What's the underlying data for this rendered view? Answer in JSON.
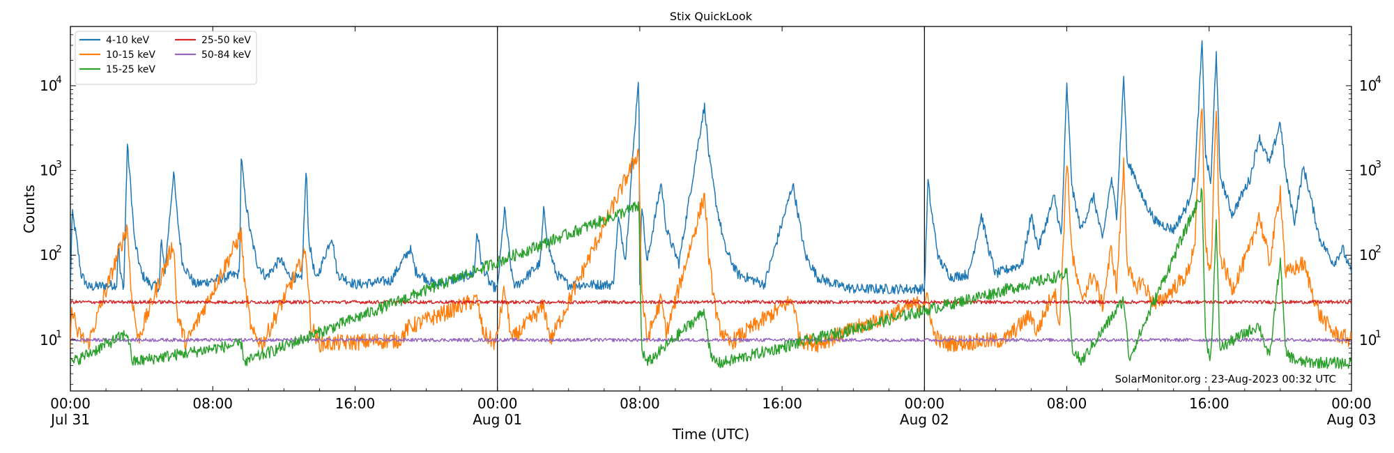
{
  "chart_data": {
    "type": "line",
    "title": "Stix QuickLook",
    "xlabel": "Time (UTC)",
    "ylabel": "Counts",
    "yscale": "log",
    "ylim": [
      2.5,
      50000
    ],
    "xlim_hours": [
      0,
      72
    ],
    "grid": false,
    "legend_position": "top-left",
    "x_ticks": [
      {
        "hour": 0,
        "label": "00:00",
        "sublabel": "Jul 31"
      },
      {
        "hour": 8,
        "label": "08:00",
        "sublabel": ""
      },
      {
        "hour": 16,
        "label": "16:00",
        "sublabel": ""
      },
      {
        "hour": 24,
        "label": "00:00",
        "sublabel": "Aug 01"
      },
      {
        "hour": 32,
        "label": "08:00",
        "sublabel": ""
      },
      {
        "hour": 40,
        "label": "16:00",
        "sublabel": ""
      },
      {
        "hour": 48,
        "label": "00:00",
        "sublabel": "Aug 02"
      },
      {
        "hour": 56,
        "label": "08:00",
        "sublabel": ""
      },
      {
        "hour": 64,
        "label": "16:00",
        "sublabel": ""
      },
      {
        "hour": 72,
        "label": "00:00",
        "sublabel": "Aug 03"
      }
    ],
    "y_ticks": [
      {
        "value": 10,
        "label": "10",
        "exponent": "1"
      },
      {
        "value": 100,
        "label": "10",
        "exponent": "2"
      },
      {
        "value": 1000,
        "label": "10",
        "exponent": "3"
      },
      {
        "value": 10000,
        "label": "10",
        "exponent": "4"
      }
    ],
    "day_boundaries_hours": [
      24,
      48
    ],
    "annotation": "SolarMonitor.org : 23-Aug-2023 00:32 UTC",
    "series": [
      {
        "name": "4-10 keV",
        "color": "#1f77b4",
        "baseline": 38,
        "points": [
          [
            0,
            40
          ],
          [
            0.1,
            320
          ],
          [
            0.3,
            180
          ],
          [
            0.6,
            60
          ],
          [
            1,
            42
          ],
          [
            2.6,
            45
          ],
          [
            2.7,
            150
          ],
          [
            2.8,
            60
          ],
          [
            3,
            42
          ],
          [
            3.2,
            2050
          ],
          [
            3.4,
            600
          ],
          [
            3.6,
            150
          ],
          [
            4,
            60
          ],
          [
            4.5,
            45
          ],
          [
            5,
            42
          ],
          [
            5.1,
            160
          ],
          [
            5.3,
            60
          ],
          [
            5.8,
            950
          ],
          [
            6,
            300
          ],
          [
            6.3,
            80
          ],
          [
            7,
            45
          ],
          [
            9.5,
            60
          ],
          [
            9.6,
            1450
          ],
          [
            9.8,
            520
          ],
          [
            10.1,
            190
          ],
          [
            10.5,
            80
          ],
          [
            11,
            55
          ],
          [
            11.8,
            90
          ],
          [
            12.2,
            60
          ],
          [
            13,
            50
          ],
          [
            13.25,
            1050
          ],
          [
            13.4,
            150
          ],
          [
            13.8,
            50
          ],
          [
            14.7,
            170
          ],
          [
            15,
            60
          ],
          [
            16,
            45
          ],
          [
            18,
            50
          ],
          [
            19.1,
            120
          ],
          [
            19.4,
            65
          ],
          [
            20.5,
            45
          ],
          [
            22.7,
            60
          ],
          [
            22.85,
            200
          ],
          [
            23.1,
            80
          ],
          [
            23.6,
            45
          ],
          [
            24,
            40
          ],
          [
            24.4,
            350
          ],
          [
            24.8,
            60
          ],
          [
            25,
            42
          ],
          [
            26.4,
            80
          ],
          [
            26.6,
            330
          ],
          [
            26.9,
            120
          ],
          [
            27.3,
            60
          ],
          [
            28,
            45
          ],
          [
            30.5,
            45
          ],
          [
            30.8,
            270
          ],
          [
            31.2,
            90
          ],
          [
            32,
            40
          ],
          [
            31.95,
            15000
          ],
          [
            32.1,
            450
          ],
          [
            32.4,
            80
          ],
          [
            33.2,
            720
          ],
          [
            33.5,
            200
          ],
          [
            34.2,
            80
          ],
          [
            35.5,
            4000
          ],
          [
            35.65,
            5800
          ],
          [
            35.9,
            1400
          ],
          [
            36.3,
            400
          ],
          [
            36.8,
            120
          ],
          [
            37.5,
            60
          ],
          [
            38.5,
            50
          ],
          [
            39,
            45
          ],
          [
            40.3,
            400
          ],
          [
            40.6,
            700
          ],
          [
            40.9,
            300
          ],
          [
            41.3,
            100
          ],
          [
            42,
            55
          ],
          [
            43,
            45
          ],
          [
            44,
            40
          ],
          [
            46,
            40
          ],
          [
            48,
            40
          ],
          [
            48.2,
            750
          ],
          [
            48.4,
            320
          ],
          [
            48.8,
            90
          ],
          [
            49.5,
            55
          ],
          [
            50.5,
            60
          ],
          [
            51.2,
            300
          ],
          [
            51.6,
            120
          ],
          [
            52,
            60
          ],
          [
            53.5,
            80
          ],
          [
            54,
            300
          ],
          [
            54.4,
            120
          ],
          [
            55.3,
            500
          ],
          [
            55.7,
            160
          ],
          [
            56,
            10000
          ],
          [
            56.3,
            600
          ],
          [
            56.8,
            200
          ],
          [
            57.5,
            500
          ],
          [
            58,
            150
          ],
          [
            58.5,
            800
          ],
          [
            58.8,
            300
          ],
          [
            59.2,
            13000
          ],
          [
            59.4,
            1200
          ],
          [
            59.8,
            900
          ],
          [
            60.2,
            500
          ],
          [
            61,
            250
          ],
          [
            62,
            200
          ],
          [
            62.8,
            400
          ],
          [
            63.2,
            900
          ],
          [
            63.6,
            32000
          ],
          [
            63.8,
            1500
          ],
          [
            64.1,
            700
          ],
          [
            64.4,
            27000
          ],
          [
            64.6,
            900
          ],
          [
            65.3,
            300
          ],
          [
            65.8,
            500
          ],
          [
            66.3,
            800
          ],
          [
            66.8,
            2500
          ],
          [
            67.4,
            1200
          ],
          [
            68,
            3800
          ],
          [
            68.3,
            900
          ],
          [
            68.8,
            250
          ],
          [
            69.3,
            1100
          ],
          [
            69.6,
            600
          ],
          [
            70.2,
            160
          ],
          [
            71,
            80
          ],
          [
            71.5,
            120
          ],
          [
            72,
            60
          ]
        ]
      },
      {
        "name": "10-15 keV",
        "color": "#ff7f0e",
        "baseline": 8.5,
        "points": [
          [
            0,
            9
          ],
          [
            0.1,
            25
          ],
          [
            0.4,
            12
          ],
          [
            1,
            9
          ],
          [
            3.2,
            220
          ],
          [
            3.4,
            40
          ],
          [
            3.8,
            10
          ],
          [
            5.8,
            140
          ],
          [
            6,
            20
          ],
          [
            6.5,
            9
          ],
          [
            9.6,
            180
          ],
          [
            9.8,
            45
          ],
          [
            10.2,
            12
          ],
          [
            10.8,
            9
          ],
          [
            13.25,
            110
          ],
          [
            13.5,
            15
          ],
          [
            14,
            9
          ],
          [
            18.5,
            10
          ],
          [
            19,
            14
          ],
          [
            22.85,
            30
          ],
          [
            23.2,
            12
          ],
          [
            23.9,
            9
          ],
          [
            24.4,
            40
          ],
          [
            24.8,
            10
          ],
          [
            26.6,
            25
          ],
          [
            27,
            10
          ],
          [
            31.95,
            1700
          ],
          [
            32.1,
            40
          ],
          [
            32.4,
            10
          ],
          [
            33.2,
            30
          ],
          [
            33.5,
            12
          ],
          [
            35.65,
            520
          ],
          [
            35.9,
            80
          ],
          [
            36.4,
            15
          ],
          [
            37,
            9
          ],
          [
            40.6,
            30
          ],
          [
            41,
            10
          ],
          [
            42,
            9
          ],
          [
            48.2,
            30
          ],
          [
            48.5,
            12
          ],
          [
            49,
            9
          ],
          [
            52.5,
            10
          ],
          [
            54,
            20
          ],
          [
            54.3,
            12
          ],
          [
            55.3,
            40
          ],
          [
            55.6,
            15
          ],
          [
            56,
            1400
          ],
          [
            56.3,
            100
          ],
          [
            56.8,
            30
          ],
          [
            57.5,
            60
          ],
          [
            58,
            25
          ],
          [
            58.5,
            120
          ],
          [
            58.8,
            40
          ],
          [
            59.2,
            1200
          ],
          [
            59.4,
            80
          ],
          [
            59.8,
            40
          ],
          [
            60.2,
            50
          ],
          [
            61,
            25
          ],
          [
            62.8,
            60
          ],
          [
            63.2,
            150
          ],
          [
            63.6,
            6000
          ],
          [
            63.8,
            120
          ],
          [
            64.1,
            60
          ],
          [
            64.4,
            6000
          ],
          [
            64.6,
            100
          ],
          [
            65.3,
            40
          ],
          [
            66.3,
            120
          ],
          [
            66.8,
            300
          ],
          [
            67.4,
            80
          ],
          [
            68,
            600
          ],
          [
            68.3,
            60
          ],
          [
            69.3,
            80
          ],
          [
            70.2,
            20
          ],
          [
            71,
            12
          ],
          [
            72,
            10
          ]
        ]
      },
      {
        "name": "15-25 keV",
        "color": "#2ca02c",
        "baseline": 5.2,
        "points": [
          [
            0,
            5.3
          ],
          [
            3.2,
            12
          ],
          [
            3.5,
            5.5
          ],
          [
            9.6,
            9
          ],
          [
            9.8,
            5.5
          ],
          [
            31.95,
            380
          ],
          [
            32.1,
            8
          ],
          [
            32.4,
            5.3
          ],
          [
            35.65,
            22
          ],
          [
            36,
            6
          ],
          [
            36.5,
            5.3
          ],
          [
            56,
            60
          ],
          [
            56.3,
            8
          ],
          [
            56.8,
            5.5
          ],
          [
            59.2,
            30
          ],
          [
            59.5,
            6
          ],
          [
            63.6,
            550
          ],
          [
            63.8,
            10
          ],
          [
            64.1,
            6
          ],
          [
            64.4,
            230
          ],
          [
            64.6,
            8
          ],
          [
            66.8,
            15
          ],
          [
            67.4,
            6
          ],
          [
            68,
            90
          ],
          [
            68.3,
            7
          ],
          [
            69,
            5.5
          ],
          [
            72,
            5.3
          ]
        ]
      },
      {
        "name": "25-50 keV",
        "color": "#d62728",
        "baseline": 28,
        "points": [
          [
            0,
            28
          ],
          [
            72,
            28
          ]
        ]
      },
      {
        "name": "50-84 keV",
        "color": "#9467bd",
        "baseline": 10,
        "points": [
          [
            0,
            10
          ],
          [
            72,
            10
          ]
        ]
      }
    ]
  }
}
